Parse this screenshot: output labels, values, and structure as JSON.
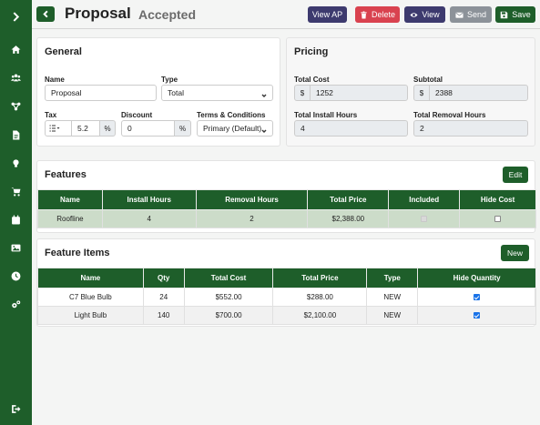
{
  "sidebar": {
    "items": [
      {
        "icon": "chevron-right-icon"
      },
      {
        "icon": "home-icon"
      },
      {
        "icon": "users-icon"
      },
      {
        "icon": "share-nodes-icon"
      },
      {
        "icon": "document-icon"
      },
      {
        "icon": "lightbulb-icon"
      },
      {
        "icon": "cart-icon"
      },
      {
        "icon": "calendar-icon"
      },
      {
        "icon": "image-icon"
      },
      {
        "icon": "clock-icon"
      },
      {
        "icon": "gears-icon"
      },
      {
        "icon": "sign-out-icon"
      }
    ]
  },
  "header": {
    "title": "Proposal",
    "status": "Accepted",
    "buttons": {
      "view_ap": "View AP",
      "delete": "Delete",
      "view": "View",
      "send": "Send",
      "save": "Save"
    }
  },
  "general": {
    "title": "General",
    "name_label": "Name",
    "name_value": "Proposal",
    "type_label": "Type",
    "type_value": "Total",
    "tax_label": "Tax",
    "tax_value": "5.2",
    "tax_unit": "%",
    "discount_label": "Discount",
    "discount_value": "0",
    "discount_unit": "%",
    "terms_label": "Terms & Conditions",
    "terms_value": "Primary (Default)"
  },
  "pricing": {
    "title": "Pricing",
    "total_cost_label": "Total Cost",
    "total_cost_prefix": "$",
    "total_cost_value": "1252",
    "subtotal_label": "Subtotal",
    "subtotal_prefix": "$",
    "subtotal_value": "2388",
    "install_hours_label": "Total Install Hours",
    "install_hours_value": "4",
    "removal_hours_label": "Total Removal Hours",
    "removal_hours_value": "2"
  },
  "features": {
    "title": "Features",
    "edit_label": "Edit",
    "headers": [
      "Name",
      "Install Hours",
      "Removal Hours",
      "Total Price",
      "Included",
      "Hide Cost"
    ],
    "rows": [
      {
        "name": "Roofline",
        "install": "4",
        "removal": "2",
        "price": "$2,388.00",
        "included": true,
        "hide_cost": false
      }
    ]
  },
  "feature_items": {
    "title": "Feature Items",
    "new_label": "New",
    "headers": [
      "Name",
      "Qty",
      "Total Cost",
      "Total Price",
      "Type",
      "Hide Quantity"
    ],
    "rows": [
      {
        "name": "C7 Blue Bulb",
        "qty": "24",
        "cost": "$552.00",
        "price": "$288.00",
        "type": "NEW",
        "hide_qty": true
      },
      {
        "name": "Light Bulb",
        "qty": "140",
        "cost": "$700.00",
        "price": "$2,100.00",
        "type": "NEW",
        "hide_qty": true
      }
    ]
  },
  "colors": {
    "brand": "#1e5e2a",
    "view_ap": "#3d3a6e",
    "delete": "#d9424f",
    "view": "#3d3a6e",
    "send": "#8c9299",
    "save": "#1e5e2a"
  }
}
